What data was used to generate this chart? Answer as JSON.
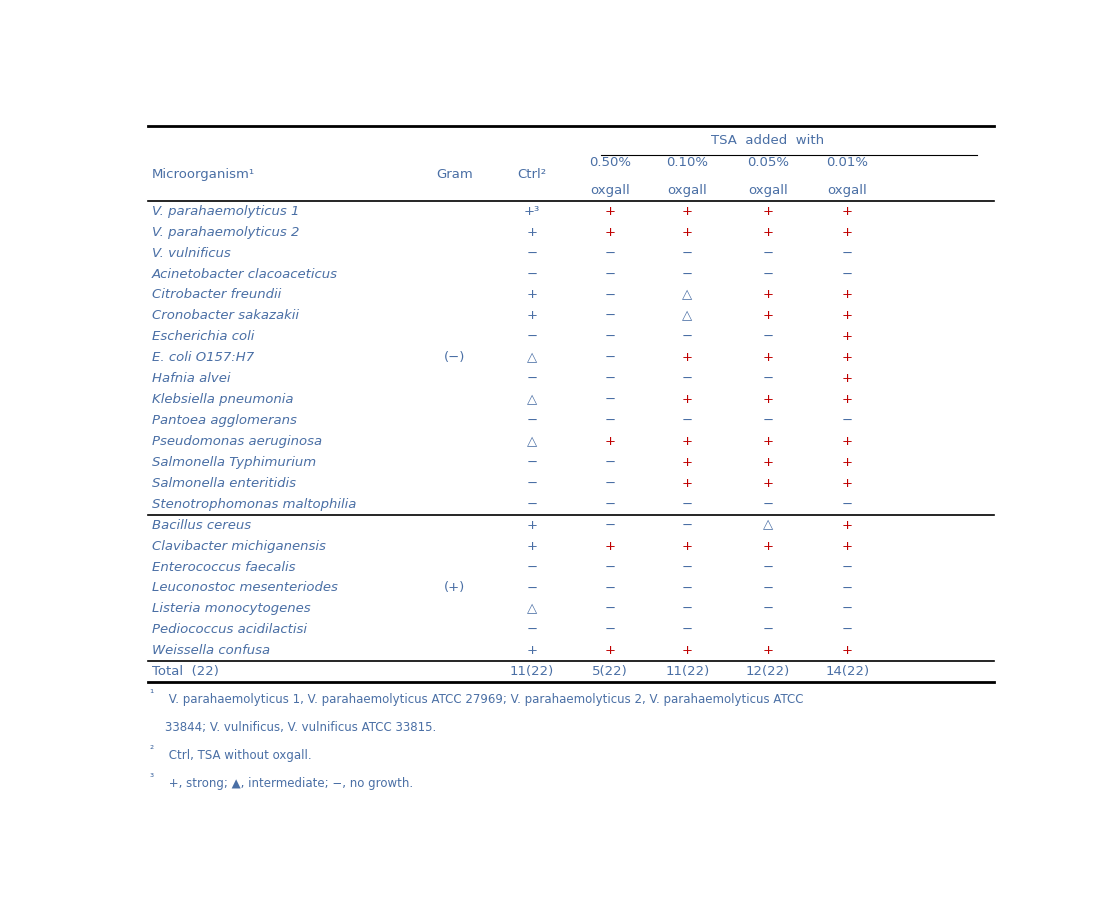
{
  "rows": [
    [
      "V. parahaemolyticus 1",
      "",
      "+³",
      "+",
      "+",
      "+",
      "+"
    ],
    [
      "V. parahaemolyticus 2",
      "",
      "+",
      "+",
      "+",
      "+",
      "+"
    ],
    [
      "V. vulnificus",
      "",
      "−",
      "−",
      "−",
      "−",
      "−"
    ],
    [
      "Acinetobacter clacoaceticus",
      "",
      "−",
      "−",
      "−",
      "−",
      "−"
    ],
    [
      "Citrobacter freundii",
      "",
      "+",
      "−",
      "△",
      "+",
      "+"
    ],
    [
      "Cronobacter sakazakii",
      "",
      "+",
      "−",
      "△",
      "+",
      "+"
    ],
    [
      "Escherichia coli",
      "",
      "−",
      "−",
      "−",
      "−",
      "+"
    ],
    [
      "E. coli O157:H7",
      "(−)",
      "△",
      "−",
      "+",
      "+",
      "+"
    ],
    [
      "Hafnia alvei",
      "",
      "−",
      "−",
      "−",
      "−",
      "+"
    ],
    [
      "Klebsiella pneumonia",
      "",
      "△",
      "−",
      "+",
      "+",
      "+"
    ],
    [
      "Pantoea agglomerans",
      "",
      "−",
      "−",
      "−",
      "−",
      "−"
    ],
    [
      "Pseudomonas aeruginosa",
      "",
      "△",
      "+",
      "+",
      "+",
      "+"
    ],
    [
      "Salmonella Typhimurium",
      "",
      "−",
      "−",
      "+",
      "+",
      "+"
    ],
    [
      "Salmonella enteritidis",
      "",
      "−",
      "−",
      "+",
      "+",
      "+"
    ],
    [
      "Stenotrophomonas maltophilia",
      "",
      "−",
      "−",
      "−",
      "−",
      "−"
    ],
    [
      "Bacillus cereus",
      "",
      "+",
      "−",
      "−",
      "△",
      "+"
    ],
    [
      "Clavibacter michiganensis",
      "",
      "+",
      "+",
      "+",
      "+",
      "+"
    ],
    [
      "Enterococcus faecalis",
      "",
      "−",
      "−",
      "−",
      "−",
      "−"
    ],
    [
      "Leuconostoc mesenteriodes",
      "(+)",
      "−",
      "−",
      "−",
      "−",
      "−"
    ],
    [
      "Listeria monocytogenes",
      "",
      "△",
      "−",
      "−",
      "−",
      "−"
    ],
    [
      "Pediococcus acidilactisi",
      "",
      "−",
      "−",
      "−",
      "−",
      "−"
    ],
    [
      "Weissella confusa",
      "",
      "+",
      "+",
      "+",
      "+",
      "+"
    ]
  ],
  "total_row": [
    "Total  (22)",
    "",
    "11(22)",
    "5(22)",
    "11(22)",
    "12(22)",
    "14(22)"
  ],
  "gram_neg_separator_after": 15,
  "footnotes": [
    [
      "¹",
      " V. parahaemolyticus 1, V. parahaemolyticus ATCC 27969; V. parahaemolyticus 2, V. parahaemolyticus ATCC"
    ],
    [
      "",
      "33844; V. vulnificus, V. vulnificus ATCC 33815."
    ],
    [
      "²",
      " Ctrl, TSA without oxgall."
    ],
    [
      "³",
      " +, strong; ▲, intermediate; −, no growth."
    ]
  ],
  "text_color": "#4a6fa5",
  "bg_color": "#ffffff",
  "line_color": "#000000",
  "red_color": "#c00000",
  "font_size": 9.5,
  "header_font_size": 9.5
}
